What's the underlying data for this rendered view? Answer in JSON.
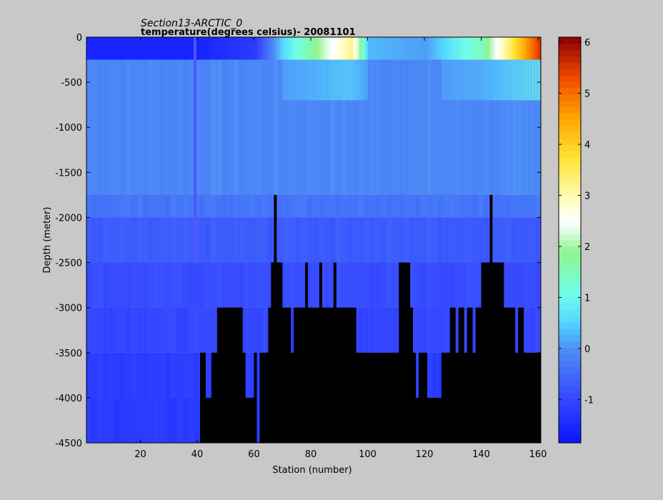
{
  "chart_data": {
    "type": "heatmap",
    "title": "Section13-ARCTIC_0",
    "subtitle": "temperature(degrees  celsius)- 20081101",
    "xlabel": "Station (number)",
    "ylabel": "Depth (meter)",
    "xlim": [
      1,
      161
    ],
    "ylim": [
      -4500,
      0
    ],
    "xticks": [
      20,
      40,
      60,
      80,
      100,
      120,
      140,
      160
    ],
    "yticks": [
      0,
      -500,
      -1000,
      -1500,
      -2000,
      -2500,
      -3000,
      -3500,
      -4000,
      -4500
    ],
    "colorbar": {
      "range": [
        -1.85,
        6.1
      ],
      "ticks": [
        -1,
        0,
        1,
        2,
        3,
        4,
        5,
        6
      ],
      "colormap": "jet-like (blue-cyan-green-white-yellow-red)"
    },
    "grid": false,
    "seafloor_color": "#000000",
    "temperature_layers": [
      {
        "depth_top": 0,
        "depth_bottom": -250,
        "description": "surface",
        "approx_temp_by_station": [
          [
            1,
            -1.6
          ],
          [
            40,
            -1.6
          ],
          [
            60,
            -1.2
          ],
          [
            70,
            0.6
          ],
          [
            88,
            2.6
          ],
          [
            94,
            3.2
          ],
          [
            100,
            0.3
          ],
          [
            120,
            0.1
          ],
          [
            140,
            1.5
          ],
          [
            160,
            5.5
          ]
        ]
      },
      {
        "depth_top": -250,
        "depth_bottom": -1750,
        "approx_temp": -0.1
      },
      {
        "depth_top": -1750,
        "depth_bottom": -2000,
        "approx_temp": -0.35
      },
      {
        "depth_top": -2000,
        "depth_bottom": -2500,
        "approx_temp": -0.7
      },
      {
        "depth_top": -2500,
        "depth_bottom": -3000,
        "approx_temp": -0.9
      },
      {
        "depth_top": -3000,
        "depth_bottom": -3500,
        "approx_temp": -1.0
      },
      {
        "depth_top": -3500,
        "depth_bottom": -4000,
        "approx_temp": -1.15
      },
      {
        "depth_top": -4000,
        "depth_bottom": -4500,
        "approx_temp": -1.2
      }
    ],
    "bottom_depth_by_station": [
      [
        1,
        -4500
      ],
      [
        40,
        -4500
      ],
      [
        41,
        -3500
      ],
      [
        43,
        -4000
      ],
      [
        45,
        -3500
      ],
      [
        46,
        -3500
      ],
      [
        47,
        -3000
      ],
      [
        55,
        -3000
      ],
      [
        56,
        -3500
      ],
      [
        57,
        -4000
      ],
      [
        60,
        -3500
      ],
      [
        61,
        -4500
      ],
      [
        62,
        -3500
      ],
      [
        65,
        -3000
      ],
      [
        66,
        -2500
      ],
      [
        67,
        -1750
      ],
      [
        68,
        -2500
      ],
      [
        70,
        -3000
      ],
      [
        73,
        -3500
      ],
      [
        74,
        -3000
      ],
      [
        78,
        -2500
      ],
      [
        79,
        -3000
      ],
      [
        83,
        -2500
      ],
      [
        84,
        -3000
      ],
      [
        88,
        -2500
      ],
      [
        89,
        -3000
      ],
      [
        96,
        -3500
      ],
      [
        110,
        -3500
      ],
      [
        111,
        -2500
      ],
      [
        115,
        -3000
      ],
      [
        116,
        -3500
      ],
      [
        117,
        -4000
      ],
      [
        118,
        -3500
      ],
      [
        121,
        -4000
      ],
      [
        126,
        -3500
      ],
      [
        129,
        -3000
      ],
      [
        131,
        -3500
      ],
      [
        132,
        -3000
      ],
      [
        134,
        -3500
      ],
      [
        135,
        -3000
      ],
      [
        137,
        -3500
      ],
      [
        138,
        -3000
      ],
      [
        140,
        -2500
      ],
      [
        143,
        -1750
      ],
      [
        144,
        -2500
      ],
      [
        148,
        -3000
      ],
      [
        152,
        -3500
      ],
      [
        153,
        -3000
      ],
      [
        155,
        -3500
      ],
      [
        161,
        -3500
      ]
    ]
  }
}
